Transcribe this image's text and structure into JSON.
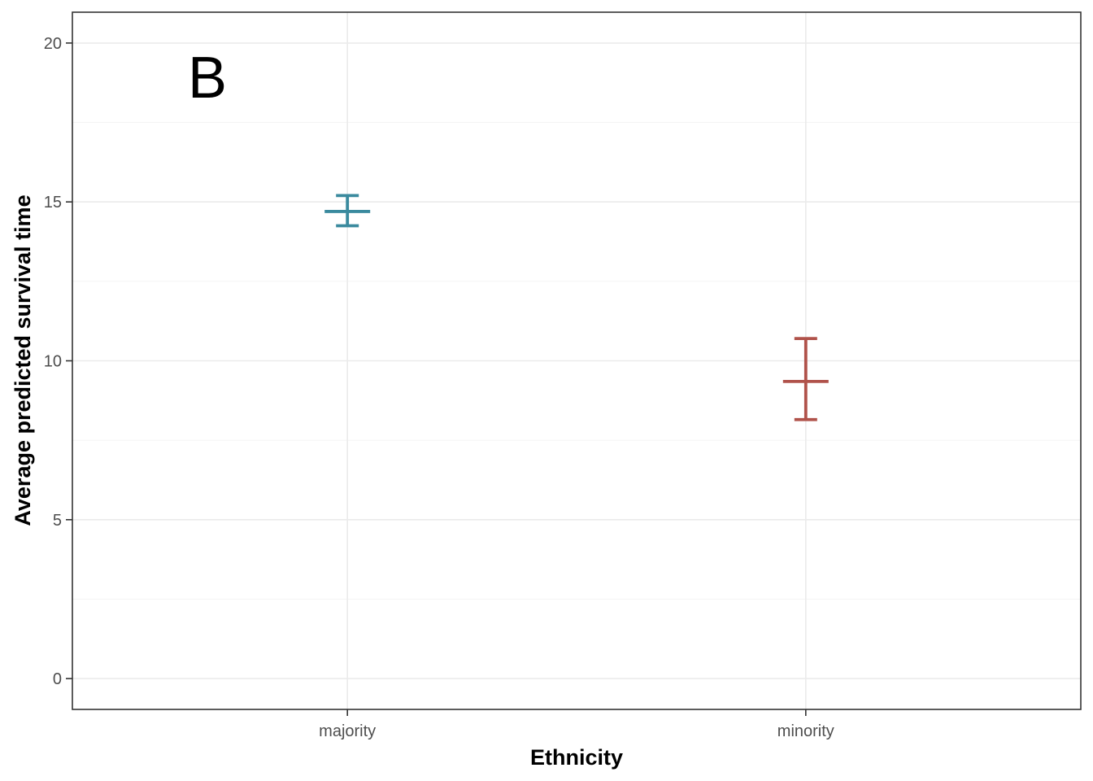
{
  "chart_data": {
    "type": "errorbar",
    "panel_label": "B",
    "xlabel": "Ethnicity",
    "ylabel": "Average predicted survival time",
    "categories": [
      "majority",
      "minority"
    ],
    "series": [
      {
        "category": "majority",
        "mean": 14.7,
        "lower": 14.25,
        "upper": 15.2,
        "color": "#3a8a9e"
      },
      {
        "category": "minority",
        "mean": 9.35,
        "lower": 8.15,
        "upper": 10.7,
        "color": "#b0524a"
      }
    ],
    "y_ticks": [
      0,
      5,
      10,
      15,
      20
    ],
    "y_minor": [
      2.5,
      7.5,
      12.5,
      17.5
    ],
    "ylim": [
      -0.97,
      20.97
    ],
    "grid": true,
    "legend": "none"
  }
}
